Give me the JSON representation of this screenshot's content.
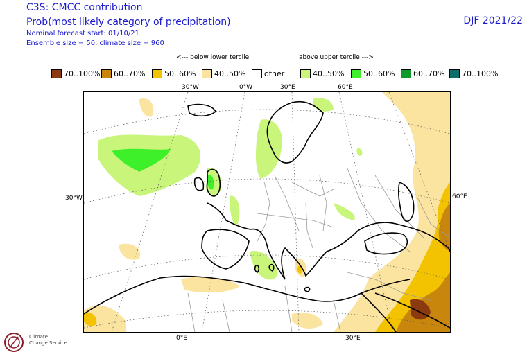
{
  "header": {
    "title": "C3S: CMCC contribution",
    "subtitle": "Prob(most likely category of precipitation)",
    "forecast_start": "Nominal forecast start: 01/10/21",
    "ensemble": "Ensemble size = 50, climate size = 960",
    "season": "DJF 2021/22"
  },
  "legend": {
    "below_hint": "<--- below lower tercile",
    "above_hint": "above upper tercile --->",
    "items": [
      {
        "label": "70..100%",
        "color": "#8b3a0f"
      },
      {
        "label": "60..70%",
        "color": "#c8860d"
      },
      {
        "label": "50..60%",
        "color": "#f3c200"
      },
      {
        "label": "40..50%",
        "color": "#fbe3a0"
      },
      {
        "label": "other",
        "color": "#ffffff"
      },
      {
        "label": "40..50%",
        "color": "#c8f57a"
      },
      {
        "label": "50..60%",
        "color": "#3ef02a"
      },
      {
        "label": "60..70%",
        "color": "#0d9a2a"
      },
      {
        "label": "70..100%",
        "color": "#0a6f6a"
      }
    ]
  },
  "map": {
    "top_labels": [
      "30°W",
      "0°W",
      "30°E",
      "60°E"
    ],
    "left_label": "30°W",
    "right_label": "60°E",
    "bottom_labels": [
      "0°E",
      "30°E"
    ]
  },
  "logo": {
    "text_line1": "Climate",
    "text_line2": "Change Service"
  }
}
